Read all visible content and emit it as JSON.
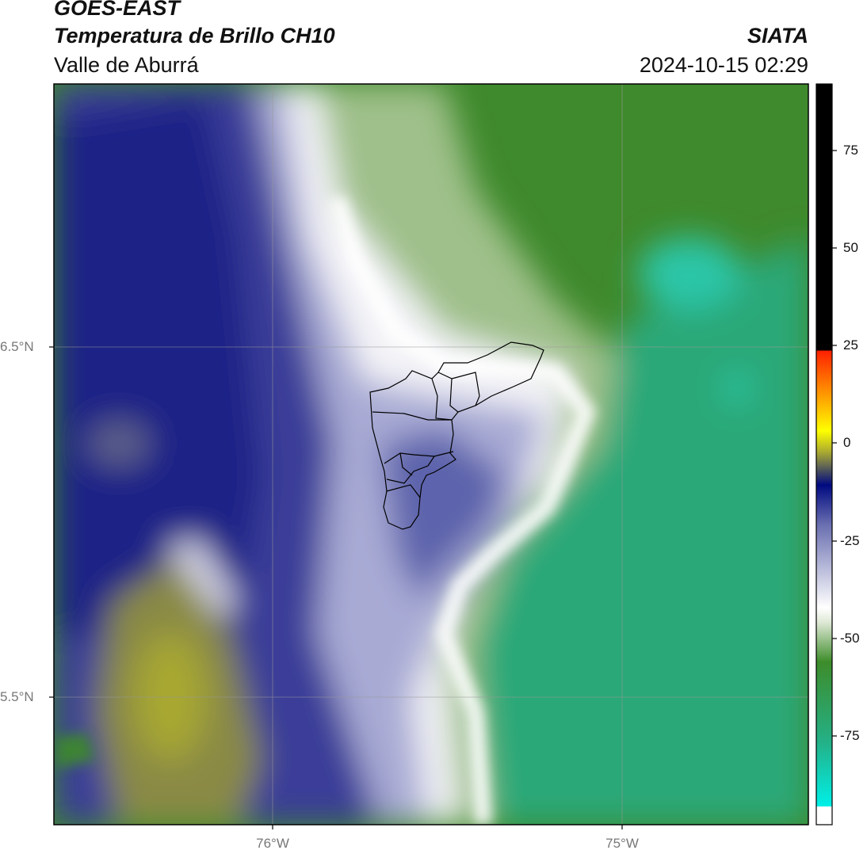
{
  "header": {
    "satellite": "GOES-EAST",
    "product": "Temperatura de Brillo CH10",
    "organization": "SIATA",
    "region": "Valle de Aburrá",
    "datetime": "2024-10-15 02:29"
  },
  "map": {
    "lat_labels": [
      "6.5°N",
      "5.5°N"
    ],
    "lon_labels": [
      "76°W",
      "75°W"
    ]
  },
  "colorbar": {
    "ticks": [
      "75",
      "50",
      "25",
      "0",
      "-25",
      "-50",
      "-75"
    ],
    "colors": [
      "#000000",
      "#ff2200",
      "#ff9900",
      "#ffff00",
      "#a8a832",
      "#000080",
      "#ffffff",
      "#3d8c2a",
      "#24b086",
      "#00e5e5"
    ]
  }
}
